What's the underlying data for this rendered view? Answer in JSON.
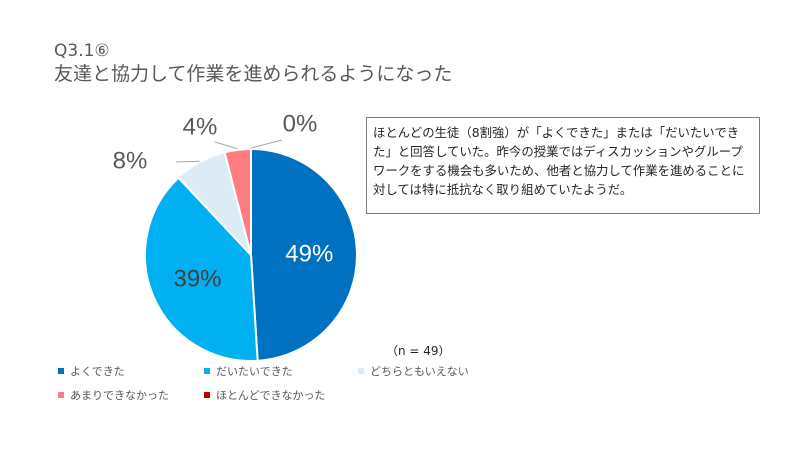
{
  "title": {
    "line1": "Q3.1⑥",
    "line2": "友達と協力して作業を進められるようになった"
  },
  "comment": "ほとんどの生徒（8割強）が「よくできた」または「だいたいできた」と回答していた。昨今の授業ではディスカッションやグループワークをする機会も多いため、他者と協力して作業を進めることに対しては特に抵抗なく取り組めていたようだ。",
  "sample_note": "（n = 49）",
  "chart_data": {
    "type": "pie",
    "categories": [
      "よくできた",
      "だいたいできた",
      "どちらともいえない",
      "あまりできなかった",
      "ほとんどできなかった"
    ],
    "values": [
      49,
      39,
      8,
      4,
      0
    ],
    "labels": [
      "49%",
      "39%",
      "8%",
      "4%",
      "0%"
    ],
    "colors": [
      "#0070c0",
      "#00b0f0",
      "#ddebf7",
      "#ff7c80",
      "#c00000"
    ],
    "legend_position": "bottom-left"
  }
}
